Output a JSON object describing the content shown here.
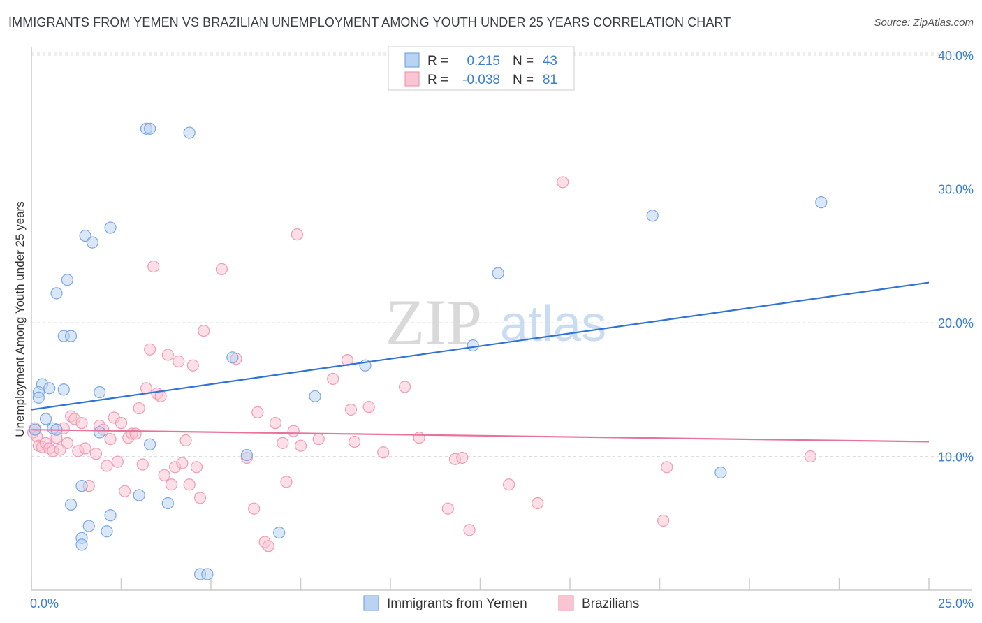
{
  "title": "IMMIGRANTS FROM YEMEN VS BRAZILIAN UNEMPLOYMENT AMONG YOUTH UNDER 25 YEARS CORRELATION CHART",
  "source": "Source: ZipAtlas.com",
  "watermark": {
    "zip": "ZIP",
    "atlas": "atlas"
  },
  "legend": {
    "rows": [
      {
        "r_label": "R =",
        "r_value": "0.215",
        "n_label": "N =",
        "n_value": "43"
      },
      {
        "r_label": "R =",
        "r_value": "-0.038",
        "n_label": "N =",
        "n_value": "81"
      }
    ]
  },
  "colors": {
    "yemen_fill": "#b9d3f2",
    "yemen_stroke": "#7aa7e0",
    "yemen_line": "#2f73d4",
    "brazil_fill": "#f9c5d3",
    "brazil_stroke": "#ee9ab2",
    "brazil_line": "#e8739a",
    "tick_text": "#3a7fd1",
    "grid": "#dddddd"
  },
  "chart_data": {
    "type": "scatter",
    "title": "IMMIGRANTS FROM YEMEN VS BRAZILIAN UNEMPLOYMENT AMONG YOUTH UNDER 25 YEARS CORRELATION CHART",
    "xlabel": "",
    "ylabel": "Unemployment Among Youth under 25 years",
    "xlim": [
      0,
      25
    ],
    "ylim": [
      0,
      40
    ],
    "x_tick_labels": [
      "0.0%",
      "25.0%"
    ],
    "y_ticks": [
      10,
      20,
      30,
      40
    ],
    "y_tick_labels": [
      "10.0%",
      "20.0%",
      "30.0%",
      "40.0%"
    ],
    "grid": true,
    "series": [
      {
        "name": "Immigrants from Yemen",
        "trend": {
          "x": [
            0,
            25
          ],
          "y": [
            13.5,
            23.0
          ]
        },
        "points": [
          [
            3.2,
            34.5
          ],
          [
            3.3,
            34.5
          ],
          [
            4.4,
            34.2
          ],
          [
            2.2,
            27.1
          ],
          [
            1.5,
            26.5
          ],
          [
            1.7,
            26.0
          ],
          [
            1.0,
            23.2
          ],
          [
            0.7,
            22.2
          ],
          [
            0.9,
            19.0
          ],
          [
            1.1,
            19.0
          ],
          [
            0.3,
            15.4
          ],
          [
            0.5,
            15.1
          ],
          [
            0.9,
            15.0
          ],
          [
            0.2,
            14.8
          ],
          [
            0.2,
            14.4
          ],
          [
            1.9,
            14.8
          ],
          [
            0.4,
            12.8
          ],
          [
            0.6,
            12.1
          ],
          [
            0.7,
            12.0
          ],
          [
            0.1,
            12.0
          ],
          [
            1.9,
            11.8
          ],
          [
            3.3,
            10.9
          ],
          [
            1.4,
            7.8
          ],
          [
            1.1,
            6.4
          ],
          [
            3.0,
            7.1
          ],
          [
            3.8,
            6.5
          ],
          [
            1.6,
            4.8
          ],
          [
            2.2,
            5.6
          ],
          [
            2.1,
            4.4
          ],
          [
            1.4,
            3.9
          ],
          [
            1.4,
            3.4
          ],
          [
            4.7,
            1.2
          ],
          [
            4.9,
            1.2
          ],
          [
            5.6,
            17.4
          ],
          [
            6.0,
            10.1
          ],
          [
            6.9,
            4.3
          ],
          [
            7.9,
            14.5
          ],
          [
            9.3,
            16.8
          ],
          [
            12.3,
            18.3
          ],
          [
            13.0,
            23.7
          ],
          [
            17.3,
            28.0
          ],
          [
            22.0,
            29.0
          ],
          [
            19.2,
            8.8
          ]
        ]
      },
      {
        "name": "Brazilians",
        "trend": {
          "x": [
            0,
            25
          ],
          "y": [
            12.0,
            11.1
          ]
        },
        "points": [
          [
            0.05,
            11.8
          ],
          [
            0.1,
            12.1
          ],
          [
            0.15,
            11.5
          ],
          [
            0.2,
            10.8
          ],
          [
            0.3,
            10.7
          ],
          [
            0.4,
            11.0
          ],
          [
            0.5,
            10.6
          ],
          [
            0.6,
            10.4
          ],
          [
            0.7,
            11.4
          ],
          [
            0.8,
            10.5
          ],
          [
            0.9,
            12.1
          ],
          [
            1.0,
            11.0
          ],
          [
            1.1,
            13.0
          ],
          [
            1.2,
            12.8
          ],
          [
            1.3,
            10.4
          ],
          [
            1.4,
            12.5
          ],
          [
            1.5,
            10.6
          ],
          [
            1.6,
            7.8
          ],
          [
            1.8,
            10.2
          ],
          [
            1.9,
            12.3
          ],
          [
            2.0,
            12.0
          ],
          [
            2.1,
            9.3
          ],
          [
            2.2,
            11.3
          ],
          [
            2.3,
            12.9
          ],
          [
            2.4,
            9.6
          ],
          [
            2.5,
            12.5
          ],
          [
            2.6,
            7.4
          ],
          [
            2.7,
            11.4
          ],
          [
            2.8,
            11.7
          ],
          [
            2.9,
            11.7
          ],
          [
            3.0,
            13.6
          ],
          [
            3.1,
            9.4
          ],
          [
            3.2,
            15.1
          ],
          [
            3.3,
            18.0
          ],
          [
            3.4,
            24.2
          ],
          [
            3.5,
            14.7
          ],
          [
            3.6,
            14.5
          ],
          [
            3.7,
            8.6
          ],
          [
            3.8,
            17.6
          ],
          [
            3.9,
            7.9
          ],
          [
            4.0,
            9.2
          ],
          [
            4.1,
            17.1
          ],
          [
            4.2,
            9.5
          ],
          [
            4.3,
            11.2
          ],
          [
            4.4,
            7.9
          ],
          [
            4.5,
            16.8
          ],
          [
            4.6,
            9.2
          ],
          [
            4.7,
            6.9
          ],
          [
            4.8,
            19.4
          ],
          [
            5.3,
            24.0
          ],
          [
            5.7,
            17.3
          ],
          [
            6.0,
            9.9
          ],
          [
            6.2,
            6.1
          ],
          [
            6.3,
            13.3
          ],
          [
            6.5,
            3.6
          ],
          [
            6.6,
            3.3
          ],
          [
            6.8,
            12.5
          ],
          [
            7.0,
            11.0
          ],
          [
            7.1,
            8.1
          ],
          [
            7.3,
            11.9
          ],
          [
            7.4,
            26.6
          ],
          [
            7.5,
            10.8
          ],
          [
            8.0,
            11.3
          ],
          [
            8.4,
            15.8
          ],
          [
            8.8,
            17.2
          ],
          [
            8.9,
            13.5
          ],
          [
            9.0,
            11.1
          ],
          [
            9.4,
            13.7
          ],
          [
            9.8,
            10.3
          ],
          [
            10.4,
            15.2
          ],
          [
            10.8,
            11.4
          ],
          [
            11.6,
            6.1
          ],
          [
            11.8,
            9.8
          ],
          [
            12.0,
            9.9
          ],
          [
            12.2,
            4.5
          ],
          [
            13.3,
            7.9
          ],
          [
            14.1,
            6.5
          ],
          [
            14.8,
            30.5
          ],
          [
            17.6,
            5.2
          ],
          [
            17.7,
            9.2
          ],
          [
            21.7,
            10.0
          ]
        ]
      }
    ]
  }
}
